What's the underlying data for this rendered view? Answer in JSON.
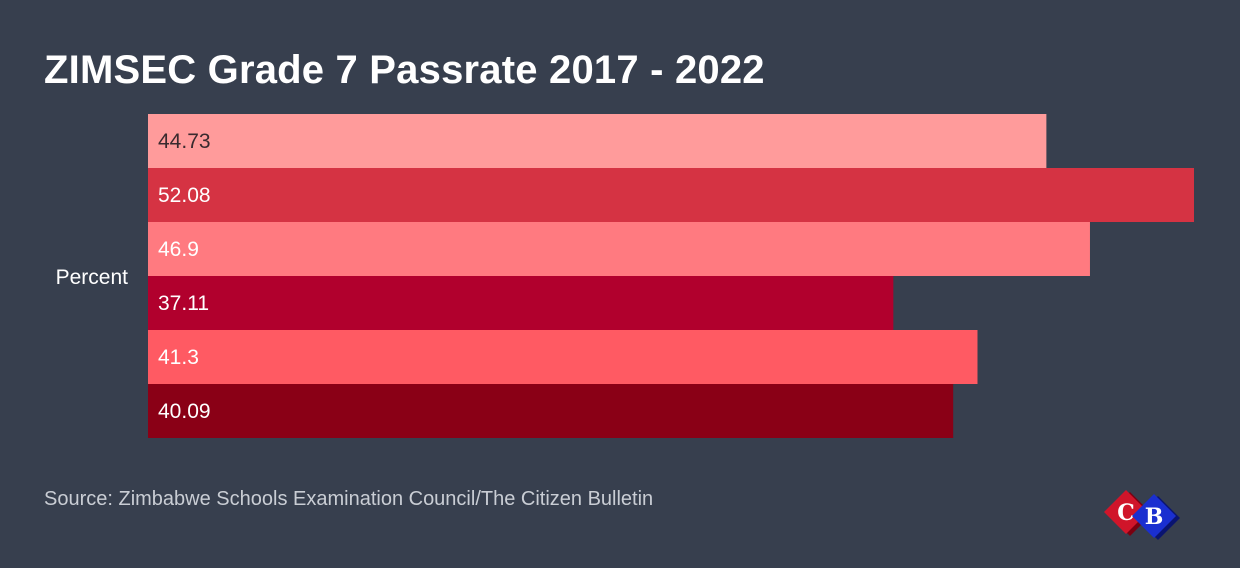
{
  "chart_data": {
    "type": "bar",
    "orientation": "horizontal",
    "title": "ZIMSEC Grade 7 Passrate 2017 - 2022",
    "categories": [
      "Percent"
    ],
    "series": [
      {
        "values": [
          44.73
        ],
        "color": "#ff9b9b",
        "label_color": "#3a2a2e"
      },
      {
        "values": [
          52.08
        ],
        "color": "#d53343",
        "label_color": "#ffffff"
      },
      {
        "values": [
          46.9
        ],
        "color": "#ff7a80",
        "label_color": "#ffffff"
      },
      {
        "values": [
          37.11
        ],
        "color": "#b1002d",
        "label_color": "#ffffff"
      },
      {
        "values": [
          41.3
        ],
        "color": "#ff5a63",
        "label_color": "#ffffff"
      },
      {
        "values": [
          40.09
        ],
        "color": "#8a0016",
        "label_color": "#ffffff"
      }
    ],
    "xlim": [
      0,
      52.08
    ],
    "grid": false,
    "legend": "none"
  },
  "source": "Source: Zimbabwe Schools Examination Council/The Citizen Bulletin",
  "logo": {
    "name": "citizen-bulletin-logo",
    "letters": [
      "C",
      "B"
    ],
    "colors": {
      "red": "#d0152a",
      "blue": "#1a2fd0"
    }
  },
  "colors": {
    "background": "#373f4e",
    "title": "#ffffff",
    "source": "#c9cdd4"
  }
}
